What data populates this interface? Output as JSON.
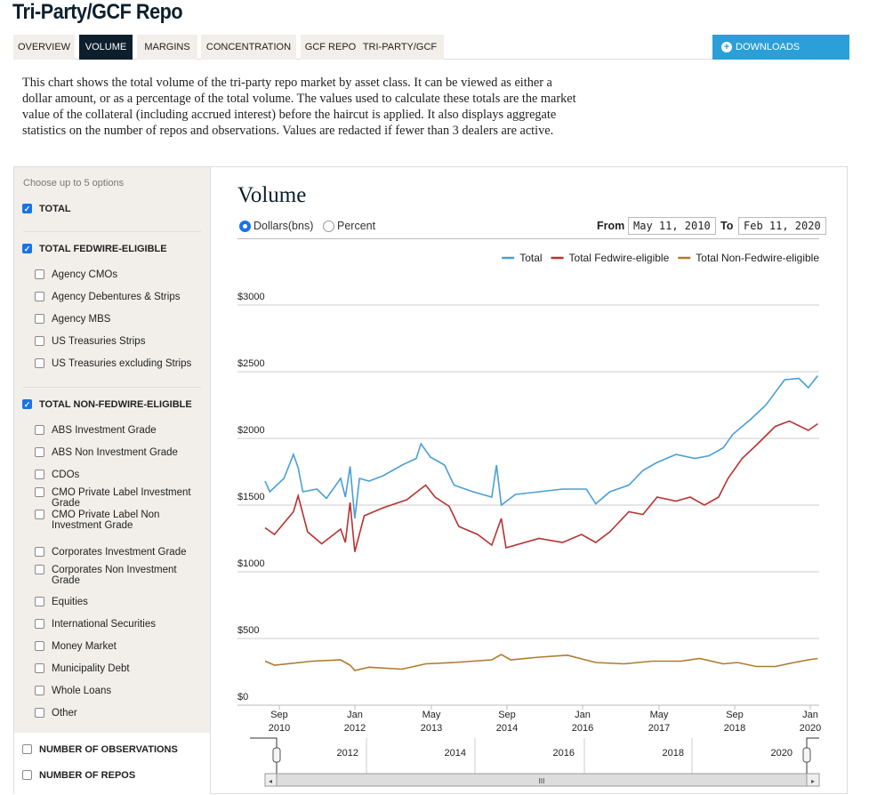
{
  "page": {
    "title": "Tri-Party/GCF Repo"
  },
  "tabs": [
    {
      "label": "OVERVIEW"
    },
    {
      "label": "VOLUME",
      "active": true
    },
    {
      "label": "MARGINS"
    },
    {
      "label": "CONCENTRATION"
    },
    {
      "label": "GCF REPO"
    },
    {
      "label": "TRI-PARTY/GCF"
    }
  ],
  "downloads": {
    "label": "DOWNLOADS",
    "icon": "plus-circle-icon"
  },
  "description": "This chart shows the total volume of the tri-party repo market by asset class. It can be viewed as either a dollar amount, or as a percentage of the total volume. The values used to calculate these totals are the market value of the collateral (including accrued interest) before the haircut is applied. It also displays aggregate statistics on the number of repos and observations. Values are redacted if fewer than 3 dealers are active.",
  "sidebar": {
    "hint": "Choose up to 5 options",
    "items": [
      {
        "label": "TOTAL",
        "checked": true,
        "bold": true
      },
      {
        "label": "TOTAL FEDWIRE-ELIGIBLE",
        "checked": true,
        "bold": true
      },
      {
        "label": "Agency CMOs"
      },
      {
        "label": "Agency Debentures & Strips"
      },
      {
        "label": "Agency MBS"
      },
      {
        "label": "US Treasuries Strips"
      },
      {
        "label": "US Treasuries excluding Strips"
      },
      {
        "label": "TOTAL NON-FEDWIRE-ELIGIBLE",
        "checked": true,
        "bold": true
      },
      {
        "label": "ABS Investment Grade"
      },
      {
        "label": "ABS Non Investment Grade"
      },
      {
        "label": "CDOs"
      },
      {
        "label": "CMO Private Label Investment Grade"
      },
      {
        "label": "CMO Private Label Non Investment Grade"
      },
      {
        "label": "Corporates Investment Grade"
      },
      {
        "label": "Corporates Non Investment Grade"
      },
      {
        "label": "Equities"
      },
      {
        "label": "International Securities"
      },
      {
        "label": "Money Market"
      },
      {
        "label": "Municipality Debt"
      },
      {
        "label": "Whole Loans"
      },
      {
        "label": "Other"
      },
      {
        "label": "NUMBER OF OBSERVATIONS",
        "bold": true
      },
      {
        "label": "NUMBER OF REPOS",
        "bold": true
      }
    ]
  },
  "controls": {
    "dollars": "Dollars(bns)",
    "percent": "Percent",
    "selected": "Dollars(bns)",
    "from_label": "From",
    "from": "May 11, 2010",
    "to_label": "To",
    "to": "Feb 11, 2020"
  },
  "chart_data": {
    "type": "line",
    "title": "Volume",
    "ylim": [
      0,
      3000
    ],
    "grid": true,
    "legend": "top-right",
    "yticks": [
      "$0",
      "$500",
      "$1000",
      "$1500",
      "$2000",
      "$2500",
      "$3000"
    ],
    "xticks": [
      [
        "Sep",
        "2010"
      ],
      [
        "Jan",
        "2012"
      ],
      [
        "May",
        "2013"
      ],
      [
        "Sep",
        "2014"
      ],
      [
        "Jan",
        "2016"
      ],
      [
        "May",
        "2017"
      ],
      [
        "Sep",
        "2018"
      ],
      [
        "Jan",
        "2020"
      ]
    ],
    "navigator_labels": [
      "2012",
      "2014",
      "2016",
      "2018",
      "2020"
    ],
    "series": [
      {
        "name": "Total",
        "color": "#4a9fd5",
        "points": [
          [
            "2010-05",
            1680
          ],
          [
            "2010-06",
            1600
          ],
          [
            "2010-09",
            1700
          ],
          [
            "2010-11",
            1880
          ],
          [
            "2010-12",
            1780
          ],
          [
            "2011-01",
            1600
          ],
          [
            "2011-04",
            1620
          ],
          [
            "2011-06",
            1550
          ],
          [
            "2011-09",
            1700
          ],
          [
            "2011-10",
            1560
          ],
          [
            "2011-11",
            1790
          ],
          [
            "2011-12",
            1400
          ],
          [
            "2012-01",
            1700
          ],
          [
            "2012-03",
            1680
          ],
          [
            "2012-06",
            1720
          ],
          [
            "2012-10",
            1800
          ],
          [
            "2013-01",
            1850
          ],
          [
            "2013-02",
            1960
          ],
          [
            "2013-04",
            1860
          ],
          [
            "2013-07",
            1800
          ],
          [
            "2013-09",
            1650
          ],
          [
            "2014-01",
            1600
          ],
          [
            "2014-05",
            1560
          ],
          [
            "2014-06",
            1800
          ],
          [
            "2014-07",
            1500
          ],
          [
            "2014-10",
            1580
          ],
          [
            "2015-03",
            1600
          ],
          [
            "2015-08",
            1620
          ],
          [
            "2016-01",
            1620
          ],
          [
            "2016-03",
            1510
          ],
          [
            "2016-06",
            1600
          ],
          [
            "2016-10",
            1650
          ],
          [
            "2017-01",
            1760
          ],
          [
            "2017-04",
            1820
          ],
          [
            "2017-08",
            1880
          ],
          [
            "2017-12",
            1850
          ],
          [
            "2018-03",
            1870
          ],
          [
            "2018-06",
            1930
          ],
          [
            "2018-08",
            2030
          ],
          [
            "2018-12",
            2150
          ],
          [
            "2019-03",
            2250
          ],
          [
            "2019-07",
            2440
          ],
          [
            "2019-10",
            2450
          ],
          [
            "2019-12",
            2380
          ],
          [
            "2020-02",
            2470
          ]
        ]
      },
      {
        "name": "Total Fedwire-eligible",
        "color": "#b83232",
        "points": [
          [
            "2010-05",
            1330
          ],
          [
            "2010-07",
            1280
          ],
          [
            "2010-11",
            1450
          ],
          [
            "2010-12",
            1570
          ],
          [
            "2011-02",
            1300
          ],
          [
            "2011-05",
            1210
          ],
          [
            "2011-09",
            1320
          ],
          [
            "2011-10",
            1220
          ],
          [
            "2011-11",
            1520
          ],
          [
            "2011-12",
            1150
          ],
          [
            "2012-02",
            1420
          ],
          [
            "2012-06",
            1480
          ],
          [
            "2012-11",
            1540
          ],
          [
            "2013-03",
            1650
          ],
          [
            "2013-05",
            1560
          ],
          [
            "2013-08",
            1490
          ],
          [
            "2013-10",
            1340
          ],
          [
            "2014-02",
            1280
          ],
          [
            "2014-05",
            1200
          ],
          [
            "2014-07",
            1400
          ],
          [
            "2014-08",
            1180
          ],
          [
            "2015-03",
            1250
          ],
          [
            "2015-08",
            1220
          ],
          [
            "2015-12",
            1280
          ],
          [
            "2016-03",
            1220
          ],
          [
            "2016-06",
            1300
          ],
          [
            "2016-10",
            1450
          ],
          [
            "2017-01",
            1430
          ],
          [
            "2017-04",
            1560
          ],
          [
            "2017-08",
            1530
          ],
          [
            "2017-11",
            1560
          ],
          [
            "2018-02",
            1500
          ],
          [
            "2018-05",
            1560
          ],
          [
            "2018-07",
            1700
          ],
          [
            "2018-10",
            1850
          ],
          [
            "2019-01",
            1950
          ],
          [
            "2019-05",
            2090
          ],
          [
            "2019-08",
            2130
          ],
          [
            "2019-12",
            2060
          ],
          [
            "2020-02",
            2110
          ]
        ]
      },
      {
        "name": "Total Non-Fedwire-eligible",
        "color": "#b07a2e",
        "points": [
          [
            "2010-05",
            330
          ],
          [
            "2010-07",
            300
          ],
          [
            "2011-03",
            330
          ],
          [
            "2011-09",
            340
          ],
          [
            "2011-11",
            300
          ],
          [
            "2011-12",
            260
          ],
          [
            "2012-03",
            285
          ],
          [
            "2012-10",
            270
          ],
          [
            "2013-03",
            310
          ],
          [
            "2013-09",
            320
          ],
          [
            "2014-05",
            340
          ],
          [
            "2014-07",
            380
          ],
          [
            "2014-09",
            340
          ],
          [
            "2015-03",
            360
          ],
          [
            "2015-09",
            375
          ],
          [
            "2016-03",
            320
          ],
          [
            "2016-09",
            310
          ],
          [
            "2017-03",
            330
          ],
          [
            "2017-09",
            330
          ],
          [
            "2018-01",
            350
          ],
          [
            "2018-06",
            310
          ],
          [
            "2018-09",
            320
          ],
          [
            "2019-01",
            290
          ],
          [
            "2019-05",
            290
          ],
          [
            "2019-09",
            320
          ],
          [
            "2019-12",
            340
          ],
          [
            "2020-02",
            350
          ]
        ]
      }
    ]
  }
}
